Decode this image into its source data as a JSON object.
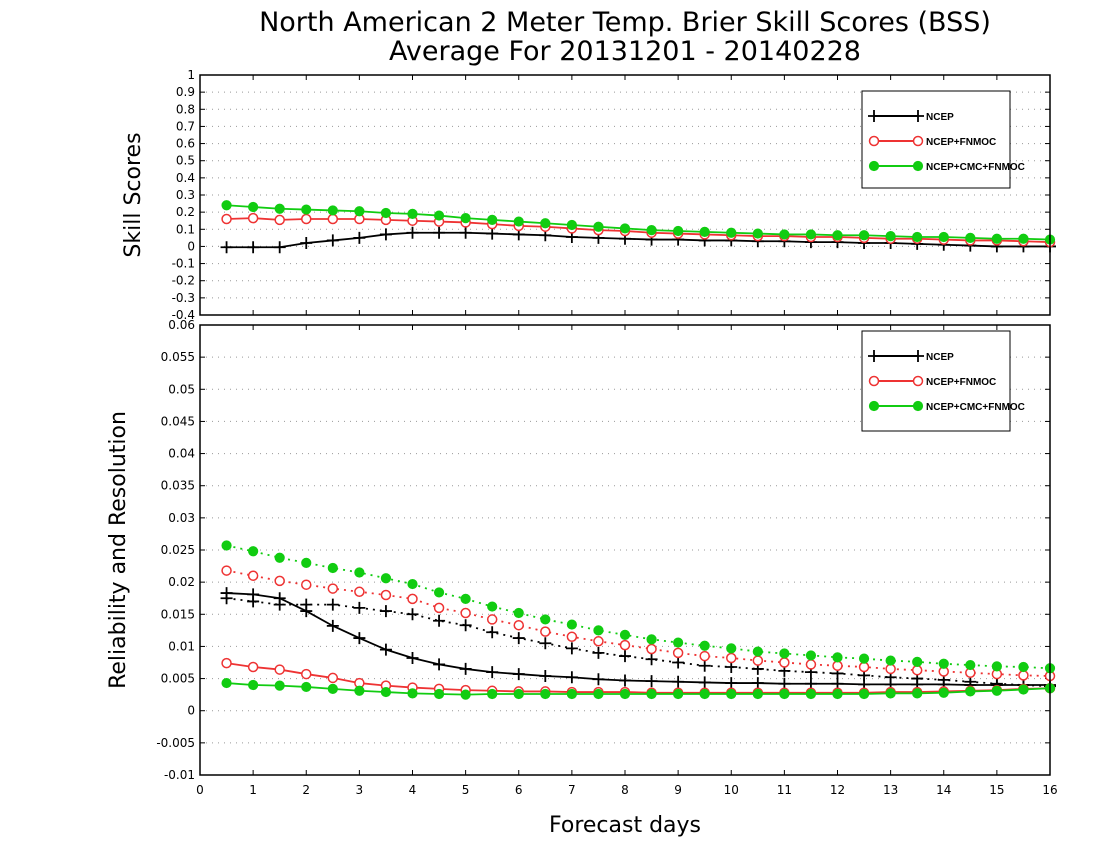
{
  "title_line1": "North American 2 Meter Temp. Brier Skill Scores (BSS)",
  "title_line2": "Average For 20131201 - 20140228",
  "xlabel": "Forecast days",
  "ylabel_top": "Skill Scores",
  "ylabel_bottom": "Reliability and Resolution",
  "colors": {
    "NCEP": "#000000",
    "NCEP+FNMOC": "#ee3333",
    "NCEP+CMC+FNMOC": "#11cc11",
    "grid": "#999999"
  },
  "chart_data": [
    {
      "type": "line",
      "name": "Skill Scores",
      "ylabel": "Skill Scores",
      "xlim": [
        0,
        16
      ],
      "ylim": [
        -0.4,
        1
      ],
      "xticks": [
        0,
        1,
        2,
        3,
        4,
        5,
        6,
        7,
        8,
        9,
        10,
        11,
        12,
        13,
        14,
        15,
        16
      ],
      "yticks": [
        "-0.4",
        "-0.3",
        "-0.2",
        "-0.1",
        "0",
        "0.1",
        "0.2",
        "0.3",
        "0.4",
        "0.5",
        "0.6",
        "0.7",
        "0.8",
        "0.9",
        "1"
      ],
      "grid": true,
      "legend_position": "top-right",
      "x": [
        0.5,
        1,
        1.5,
        2,
        2.5,
        3,
        3.5,
        4,
        4.5,
        5,
        5.5,
        6,
        6.5,
        7,
        7.5,
        8,
        8.5,
        9,
        9.5,
        10,
        10.5,
        11,
        11.5,
        12,
        12.5,
        13,
        13.5,
        14,
        14.5,
        15,
        15.5,
        16
      ],
      "series": [
        {
          "name": "NCEP",
          "marker": "plus",
          "values": [
            -0.005,
            -0.005,
            -0.005,
            0.02,
            0.035,
            0.05,
            0.07,
            0.08,
            0.08,
            0.08,
            0.075,
            0.07,
            0.065,
            0.055,
            0.05,
            0.045,
            0.04,
            0.04,
            0.035,
            0.035,
            0.03,
            0.03,
            0.025,
            0.025,
            0.02,
            0.02,
            0.015,
            0.01,
            0.005,
            0.0,
            0.0,
            0.0
          ]
        },
        {
          "name": "NCEP+FNMOC",
          "marker": "open-circle",
          "values": [
            0.16,
            0.165,
            0.155,
            0.16,
            0.16,
            0.16,
            0.155,
            0.15,
            0.145,
            0.14,
            0.13,
            0.12,
            0.115,
            0.105,
            0.095,
            0.09,
            0.08,
            0.075,
            0.07,
            0.065,
            0.06,
            0.06,
            0.055,
            0.055,
            0.05,
            0.045,
            0.045,
            0.04,
            0.035,
            0.035,
            0.03,
            0.025
          ]
        },
        {
          "name": "NCEP+CMC+FNMOC",
          "marker": "filled-circle",
          "values": [
            0.24,
            0.23,
            0.22,
            0.215,
            0.21,
            0.205,
            0.195,
            0.19,
            0.18,
            0.165,
            0.155,
            0.145,
            0.135,
            0.125,
            0.115,
            0.105,
            0.095,
            0.09,
            0.085,
            0.08,
            0.075,
            0.07,
            0.07,
            0.065,
            0.065,
            0.06,
            0.055,
            0.055,
            0.05,
            0.045,
            0.045,
            0.04
          ]
        }
      ]
    },
    {
      "type": "line",
      "name": "Reliability and Resolution",
      "ylabel": "Reliability and Resolution",
      "xlabel": "Forecast days",
      "xlim": [
        0,
        16
      ],
      "ylim": [
        -0.01,
        0.06
      ],
      "xticks": [
        0,
        1,
        2,
        3,
        4,
        5,
        6,
        7,
        8,
        9,
        10,
        11,
        12,
        13,
        14,
        15,
        16
      ],
      "yticks": [
        "-0.01",
        "-0.005",
        "0",
        "0.005",
        "0.01",
        "0.015",
        "0.02",
        "0.025",
        "0.03",
        "0.035",
        "0.04",
        "0.045",
        "0.05",
        "0.055",
        "0.06"
      ],
      "grid": true,
      "legend_position": "top-right",
      "x": [
        0.5,
        1,
        1.5,
        2,
        2.5,
        3,
        3.5,
        4,
        4.5,
        5,
        5.5,
        6,
        6.5,
        7,
        7.5,
        8,
        8.5,
        9,
        9.5,
        10,
        10.5,
        11,
        11.5,
        12,
        12.5,
        13,
        13.5,
        14,
        14.5,
        15,
        15.5,
        16
      ],
      "series": [
        {
          "name": "NCEP",
          "metric": "resolution",
          "marker": "plus",
          "line_style": "dotted",
          "values": [
            0.0175,
            0.017,
            0.0165,
            0.0165,
            0.0165,
            0.016,
            0.0155,
            0.015,
            0.014,
            0.0133,
            0.0122,
            0.0113,
            0.0105,
            0.0097,
            0.009,
            0.0085,
            0.008,
            0.0075,
            0.007,
            0.0068,
            0.0065,
            0.0062,
            0.006,
            0.0058,
            0.0055,
            0.0052,
            0.005,
            0.0048,
            0.0045,
            0.0042,
            0.004,
            0.0038
          ]
        },
        {
          "name": "NCEP",
          "metric": "reliability",
          "marker": "plus",
          "line_style": "solid",
          "values": [
            0.0183,
            0.0181,
            0.0175,
            0.0155,
            0.0132,
            0.0113,
            0.0095,
            0.0082,
            0.0072,
            0.0065,
            0.006,
            0.0057,
            0.0054,
            0.0052,
            0.0049,
            0.0047,
            0.0046,
            0.0045,
            0.0044,
            0.0043,
            0.0043,
            0.0042,
            0.0042,
            0.0042,
            0.0041,
            0.0041,
            0.0041,
            0.0041,
            0.004,
            0.004,
            0.004,
            0.004
          ]
        },
        {
          "name": "NCEP+FNMOC",
          "metric": "resolution",
          "marker": "open-circle",
          "line_style": "dotted",
          "values": [
            0.0218,
            0.021,
            0.0202,
            0.0196,
            0.019,
            0.0185,
            0.018,
            0.0174,
            0.016,
            0.0152,
            0.0142,
            0.0133,
            0.0123,
            0.0115,
            0.0108,
            0.0102,
            0.0096,
            0.009,
            0.0085,
            0.0082,
            0.0078,
            0.0075,
            0.0072,
            0.007,
            0.0068,
            0.0065,
            0.0063,
            0.0061,
            0.0059,
            0.0057,
            0.0055,
            0.0054
          ]
        },
        {
          "name": "NCEP+FNMOC",
          "metric": "reliability",
          "marker": "open-circle",
          "line_style": "solid",
          "values": [
            0.0074,
            0.0068,
            0.0064,
            0.0057,
            0.0051,
            0.0043,
            0.0039,
            0.0036,
            0.0034,
            0.0032,
            0.0031,
            0.003,
            0.003,
            0.0029,
            0.0029,
            0.0029,
            0.0028,
            0.0028,
            0.0028,
            0.0028,
            0.0028,
            0.0028,
            0.0028,
            0.0028,
            0.0028,
            0.0029,
            0.0029,
            0.003,
            0.0031,
            0.0032,
            0.0034,
            0.0035
          ]
        },
        {
          "name": "NCEP+CMC+FNMOC",
          "metric": "resolution",
          "marker": "filled-circle",
          "line_style": "dotted",
          "values": [
            0.0257,
            0.0248,
            0.0238,
            0.023,
            0.0222,
            0.0215,
            0.0206,
            0.0197,
            0.0184,
            0.0174,
            0.0162,
            0.0152,
            0.0142,
            0.0134,
            0.0125,
            0.0118,
            0.0111,
            0.0106,
            0.0101,
            0.0097,
            0.0092,
            0.0089,
            0.0086,
            0.0083,
            0.0081,
            0.0078,
            0.0076,
            0.0073,
            0.0071,
            0.0069,
            0.0068,
            0.0066
          ]
        },
        {
          "name": "NCEP+CMC+FNMOC",
          "metric": "reliability",
          "marker": "filled-circle",
          "line_style": "solid",
          "values": [
            0.0043,
            0.004,
            0.0039,
            0.0037,
            0.0034,
            0.0031,
            0.0029,
            0.0027,
            0.0026,
            0.0025,
            0.0026,
            0.0026,
            0.0026,
            0.0026,
            0.0026,
            0.0026,
            0.0026,
            0.0026,
            0.0026,
            0.0026,
            0.0026,
            0.0026,
            0.0026,
            0.0026,
            0.0026,
            0.0027,
            0.0027,
            0.0028,
            0.003,
            0.0031,
            0.0033,
            0.0035
          ]
        }
      ]
    }
  ],
  "legend": [
    "NCEP",
    "NCEP+FNMOC",
    "NCEP+CMC+FNMOC"
  ]
}
